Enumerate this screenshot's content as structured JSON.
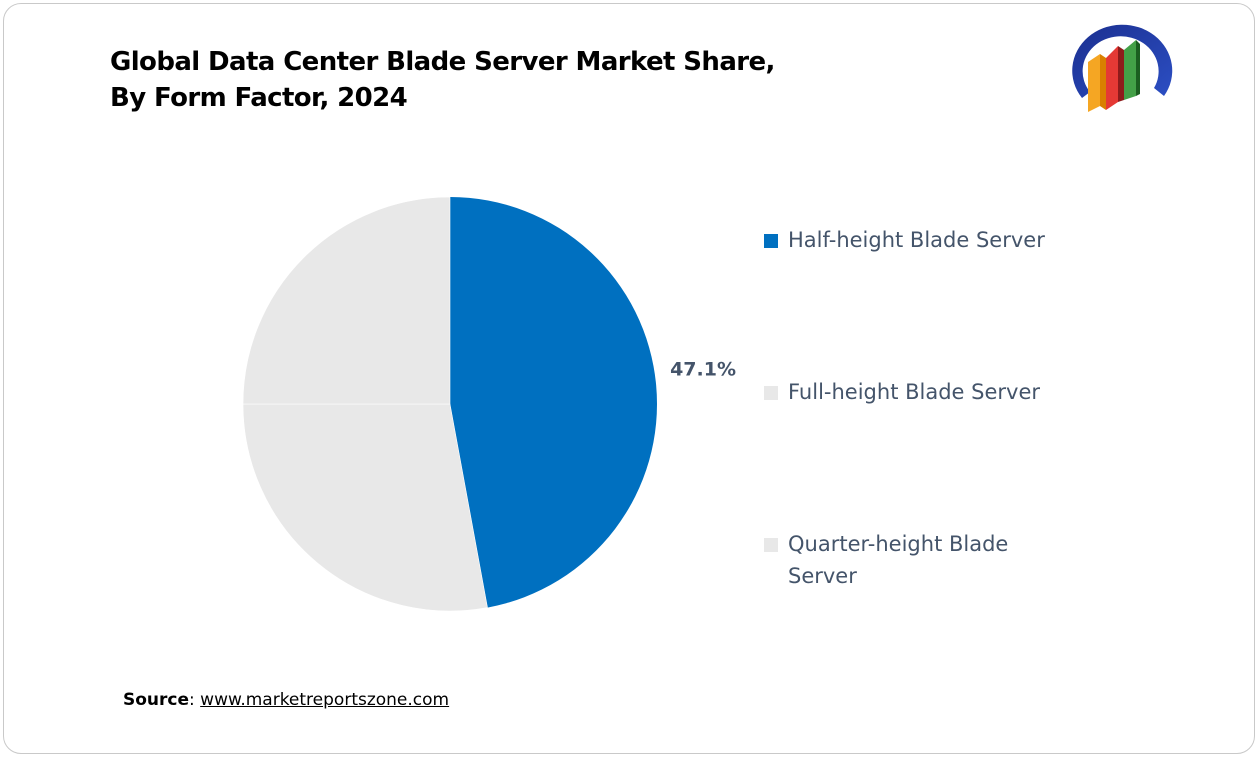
{
  "title_lines": [
    "Global Data Center Blade Server Market Share,",
    "By Form Factor, 2024"
  ],
  "logo_icon": "market-reports-zone-logo-icon",
  "source": {
    "label": "Source",
    "separator": ": ",
    "link": "www.marketreportszone.com"
  },
  "colors": {
    "half": "#0070c0",
    "full": "#e8e8e8",
    "quarter": "#e8e8e8",
    "label": "#44546a"
  },
  "chart_data": {
    "type": "pie",
    "title": "Global Data Center Blade Server Market Share, By Form Factor, 2024",
    "labels": [
      "Half-height Blade Server",
      "Full-height Blade Server",
      "Quarter-height Blade Server"
    ],
    "values": [
      47.1,
      27.9,
      25.0
    ],
    "data_labels": [
      "47.1%",
      "",
      ""
    ],
    "legend_position": "right"
  }
}
